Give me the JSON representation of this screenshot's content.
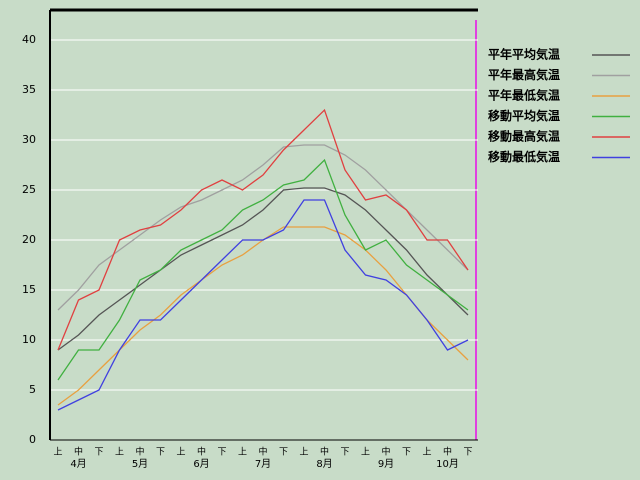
{
  "chart_data": {
    "type": "line",
    "categories": [
      "上",
      "中",
      "下",
      "上",
      "中",
      "下",
      "上",
      "中",
      "下",
      "上",
      "中",
      "下",
      "上",
      "中",
      "下",
      "上",
      "中",
      "下",
      "上",
      "中",
      "下"
    ],
    "months": [
      "4月",
      "5月",
      "6月",
      "7月",
      "8月",
      "9月",
      "10月"
    ],
    "ylim": [
      0,
      43
    ],
    "yticks": [
      0,
      5,
      10,
      15,
      20,
      25,
      30,
      35,
      40
    ],
    "grid": true,
    "legend": "top-right",
    "series": [
      {
        "name": "平年平均気温",
        "color": "#555555",
        "values": [
          9,
          10.5,
          12.5,
          14,
          15.5,
          17,
          18.5,
          19.5,
          20.5,
          21.5,
          23,
          25,
          25.2,
          25.2,
          24.5,
          23,
          21,
          19,
          16.5,
          14.5,
          12.5
        ]
      },
      {
        "name": "平年最高気温",
        "color": "#a0a0a0",
        "values": [
          13,
          15,
          17.5,
          19,
          20.5,
          22,
          23.3,
          24,
          25,
          26,
          27.5,
          29.3,
          29.5,
          29.5,
          28.5,
          27,
          25,
          23,
          21,
          19,
          17
        ]
      },
      {
        "name": "平年最低気温",
        "color": "#e8a040",
        "values": [
          3.5,
          5,
          7,
          9,
          11,
          12.5,
          14.5,
          16,
          17.5,
          18.5,
          20,
          21.3,
          21.3,
          21.3,
          20.5,
          19,
          17,
          14.5,
          12,
          10,
          8
        ]
      },
      {
        "name": "移動平均気温",
        "color": "#40b040",
        "values": [
          6,
          9,
          9,
          12,
          16,
          17,
          19,
          20,
          21,
          23,
          24,
          25.5,
          26,
          28,
          22.5,
          19,
          20,
          17.5,
          16,
          14.5,
          13
        ]
      },
      {
        "name": "移動最高気温",
        "color": "#e04040",
        "values": [
          9,
          14,
          15,
          20,
          21,
          21.5,
          23,
          25,
          26,
          25,
          26.5,
          29,
          31,
          33,
          27,
          24,
          24.5,
          23,
          20,
          20,
          17
        ]
      },
      {
        "name": "移動最低気温",
        "color": "#4040e0",
        "values": [
          3,
          4,
          5,
          9,
          12,
          12,
          14,
          16,
          18,
          20,
          20,
          21,
          24,
          24,
          19,
          16.5,
          16,
          14.5,
          12,
          9,
          10
        ]
      }
    ]
  }
}
